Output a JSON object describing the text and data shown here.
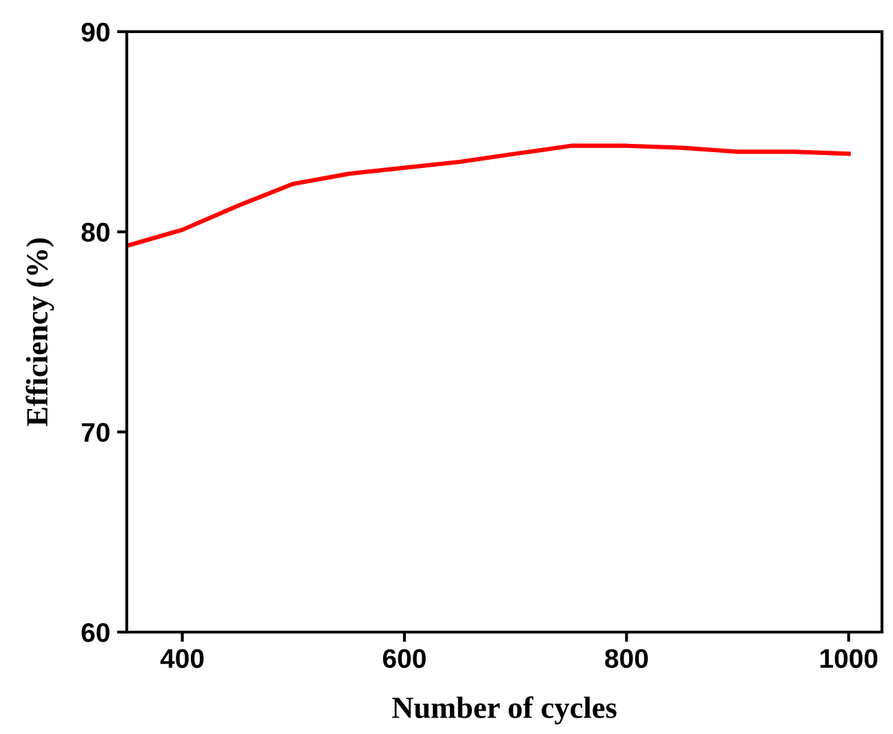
{
  "chart_data": {
    "type": "line",
    "xlabel": "Number of cycles",
    "ylabel": "Efficiency (%)",
    "x": [
      350,
      400,
      450,
      500,
      550,
      600,
      650,
      700,
      750,
      800,
      850,
      900,
      950,
      1000
    ],
    "series": [
      {
        "color": "#ff0000",
        "values": [
          79.3,
          80.1,
          81.3,
          82.4,
          82.9,
          83.2,
          83.5,
          83.9,
          84.3,
          84.3,
          84.2,
          84.0,
          84.0,
          83.9
        ]
      }
    ],
    "xlim": [
      350,
      1030
    ],
    "ylim": [
      60,
      90
    ],
    "xticks": [
      400,
      600,
      800,
      1000
    ],
    "yticks": [
      60,
      70,
      80,
      90
    ],
    "grid": false,
    "legend": false,
    "marker": "none",
    "line_style": "solid"
  }
}
